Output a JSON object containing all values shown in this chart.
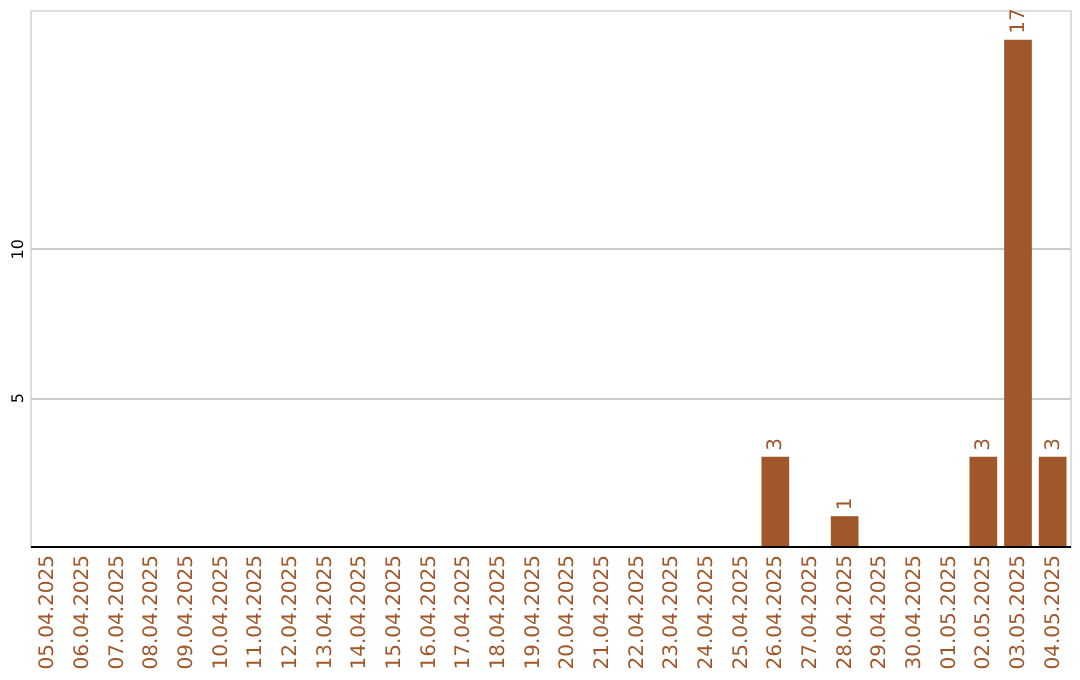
{
  "chart_data": {
    "type": "bar",
    "categories": [
      "05.04.2025",
      "06.04.2025",
      "07.04.2025",
      "08.04.2025",
      "09.04.2025",
      "10.04.2025",
      "11.04.2025",
      "12.04.2025",
      "13.04.2025",
      "14.04.2025",
      "15.04.2025",
      "16.04.2025",
      "17.04.2025",
      "18.04.2025",
      "19.04.2025",
      "20.04.2025",
      "21.04.2025",
      "22.04.2025",
      "23.04.2025",
      "24.04.2025",
      "25.04.2025",
      "26.04.2025",
      "27.04.2025",
      "28.04.2025",
      "29.04.2025",
      "30.04.2025",
      "01.05.2025",
      "02.05.2025",
      "03.05.2025",
      "04.05.2025"
    ],
    "values": [
      0,
      0,
      0,
      0,
      0,
      0,
      0,
      0,
      0,
      0,
      0,
      0,
      0,
      0,
      0,
      0,
      0,
      0,
      0,
      0,
      0,
      3,
      0,
      1,
      0,
      0,
      0,
      3,
      17,
      3
    ],
    "value_labels": [
      null,
      null,
      null,
      null,
      null,
      null,
      null,
      null,
      null,
      null,
      null,
      null,
      null,
      null,
      null,
      null,
      null,
      null,
      null,
      null,
      null,
      "3",
      null,
      "1",
      null,
      null,
      null,
      "3",
      "17",
      "3"
    ],
    "color": "#a0572a",
    "ylim": [
      0,
      18
    ],
    "yticks": [
      5,
      10
    ],
    "grid": "y"
  }
}
